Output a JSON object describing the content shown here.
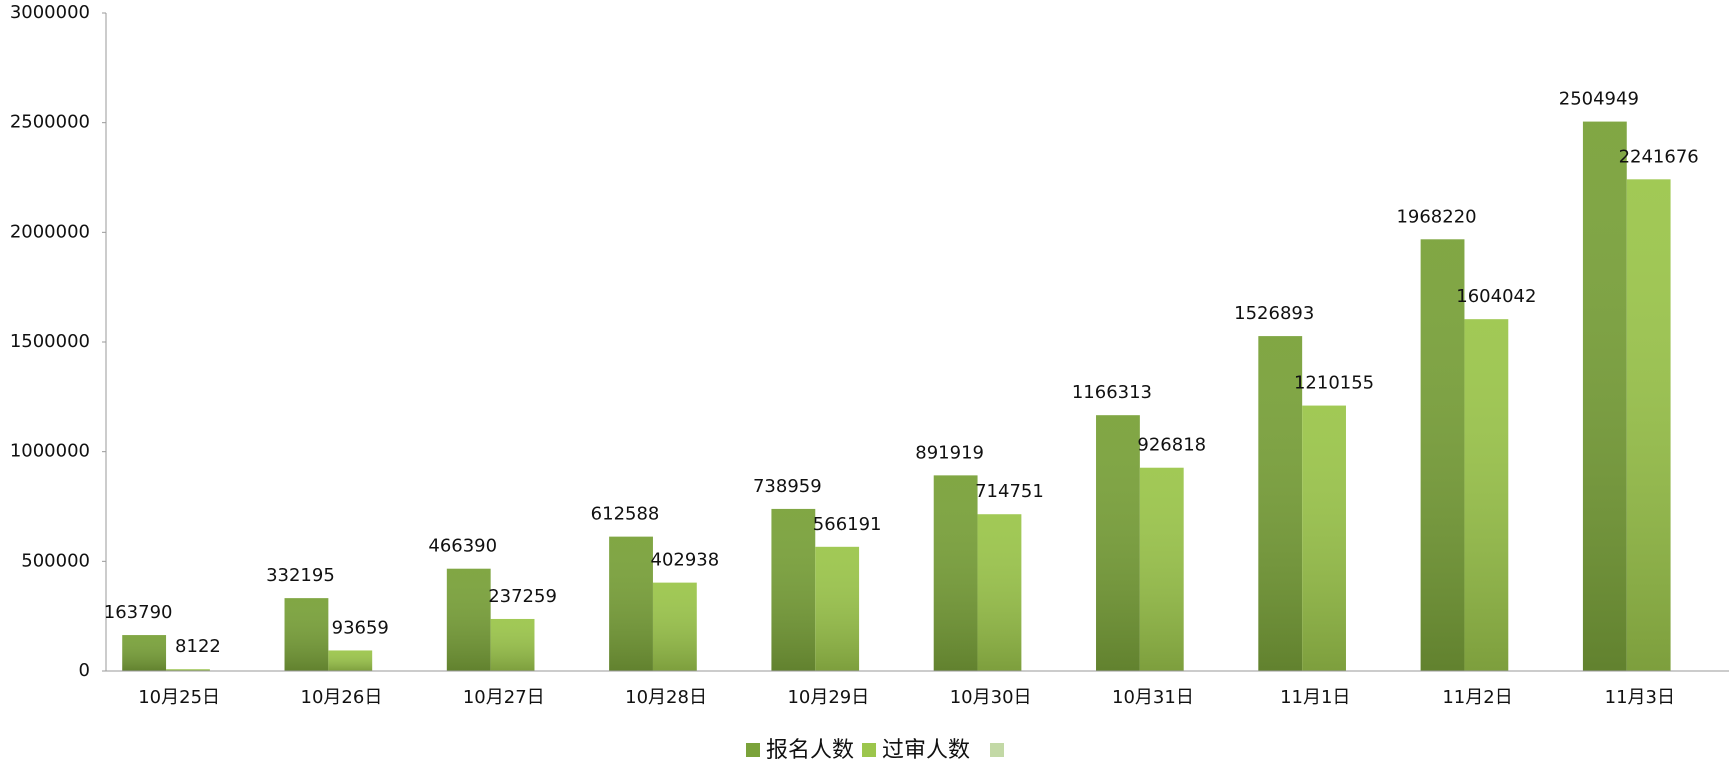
{
  "chart_data": {
    "type": "bar",
    "categories": [
      "10月25日",
      "10月26日",
      "10月27日",
      "10月28日",
      "10月29日",
      "10月30日",
      "10月31日",
      "11月1日",
      "11月2日",
      "11月3日"
    ],
    "series": [
      {
        "name": "报名人数",
        "color": "#7aa23a",
        "values": [
          163790,
          332195,
          466390,
          612588,
          738959,
          891919,
          1166313,
          1526893,
          1968220,
          2504949
        ]
      },
      {
        "name": "过审人数",
        "color": "#9cc64c",
        "values": [
          8122,
          93659,
          237259,
          402938,
          566191,
          714751,
          926818,
          1210155,
          1604042,
          2241676
        ]
      }
    ],
    "ylim": [
      0,
      3000000
    ],
    "yticks": [
      0,
      500000,
      1000000,
      1500000,
      2000000,
      2500000,
      3000000
    ],
    "grid": false,
    "legend": "bottom"
  }
}
